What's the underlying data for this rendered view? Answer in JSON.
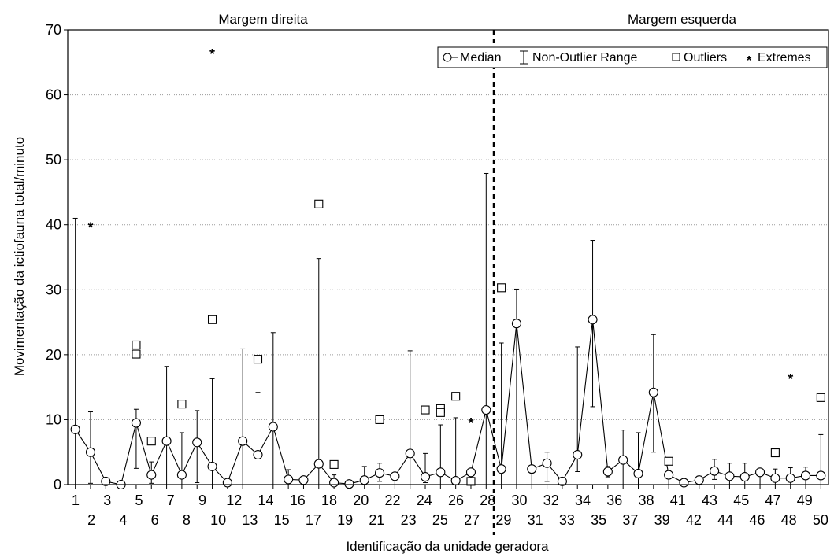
{
  "chart_data": {
    "type": "box",
    "ylabel": "Movimentação da ictiofauna total/minuto",
    "xlabel": "Identificação da unidade geradora",
    "ylim": [
      0,
      70
    ],
    "yticks": [
      0,
      10,
      20,
      30,
      40,
      50,
      60,
      70
    ],
    "grid": "horizontal dotted",
    "legend_position": "top-right",
    "legend": {
      "median": "Median",
      "range": "Non-Outlier Range",
      "outliers": "Outliers",
      "extremes": "Extremes"
    },
    "section_labels": {
      "left": "Margem direita",
      "right": "Margem esquerda"
    },
    "categories": [
      "1",
      "2",
      "3",
      "4",
      "5",
      "6",
      "7",
      "8",
      "9",
      "10",
      "11",
      "12",
      "13",
      "14",
      "15",
      "16",
      "17",
      "18",
      "19",
      "20",
      "21",
      "22",
      "23",
      "24",
      "25",
      "26",
      "27",
      "28",
      "29",
      "30",
      "31",
      "32",
      "33",
      "34",
      "35",
      "36",
      "37",
      "38",
      "39",
      "40",
      "41",
      "42",
      "43",
      "44",
      "45",
      "46",
      "47",
      "48",
      "49",
      "50"
    ],
    "tick_labels": [
      "1",
      "2",
      "3",
      "4",
      "5",
      "6",
      "7",
      "8",
      "9",
      "10",
      "12",
      "13",
      "14",
      "15",
      "16",
      "17",
      "18",
      "19",
      "20",
      "21",
      "22",
      "23",
      "24",
      "25",
      "26",
      "27",
      "28",
      "29",
      "30",
      "31",
      "32",
      "33",
      "34",
      "35",
      "36",
      "37",
      "38",
      "39",
      "41",
      "42",
      "43",
      "44",
      "45",
      "46",
      "47",
      "48",
      "49",
      "50"
    ],
    "median": [
      8.5,
      5.0,
      0.5,
      0.0,
      9.5,
      1.5,
      6.7,
      1.5,
      6.5,
      2.8,
      0.3,
      6.7,
      4.6,
      8.9,
      0.8,
      0.7,
      3.2,
      0.3,
      0.1,
      0.7,
      1.8,
      1.3,
      4.8,
      1.2,
      1.9,
      0.6,
      1.9,
      11.5,
      2.4,
      24.8,
      2.4,
      3.3,
      0.5,
      4.6,
      25.4,
      2.0,
      3.8,
      1.7,
      14.2,
      1.5,
      0.3,
      0.7,
      2.1,
      1.3,
      1.2,
      1.9,
      1.0,
      1.0,
      1.4,
      1.4
    ],
    "range_min": [
      0,
      0.2,
      0,
      0,
      2.5,
      0.2,
      0,
      0,
      0.3,
      0,
      0,
      0,
      0,
      0,
      0.2,
      0,
      0,
      0,
      0,
      0,
      0.5,
      0,
      0,
      0.3,
      0,
      0,
      0,
      0,
      0,
      0,
      0,
      0.5,
      0,
      2,
      12,
      1.2,
      0,
      0,
      5,
      0,
      0,
      0,
      0.8,
      0,
      0,
      0,
      0,
      0,
      0,
      0
    ],
    "range_max": [
      41,
      11.2,
      0.5,
      0,
      11.6,
      3.5,
      18.2,
      8,
      11.4,
      16.3,
      0.3,
      20.9,
      14.2,
      23.4,
      2.3,
      0.7,
      34.8,
      1.5,
      0.3,
      2.8,
      3.3,
      1.3,
      20.6,
      4.8,
      9.2,
      10.3,
      2.5,
      47.9,
      21.8,
      30.1,
      2.5,
      5,
      0.5,
      21.2,
      37.6,
      2.8,
      8.4,
      8,
      23.1,
      2.2,
      0.3,
      1.3,
      3.9,
      3.3,
      3.3,
      2.4,
      2.4,
      2.6,
      2.7,
      7.7
    ],
    "outliers": [
      {
        "x": "5",
        "y": 21.5
      },
      {
        "x": "5",
        "y": 20.1
      },
      {
        "x": "6",
        "y": 6.7
      },
      {
        "x": "8",
        "y": 12.4
      },
      {
        "x": "10",
        "y": 25.4
      },
      {
        "x": "13",
        "y": 19.3
      },
      {
        "x": "17",
        "y": 43.2
      },
      {
        "x": "18",
        "y": 3.1
      },
      {
        "x": "21",
        "y": 10.0
      },
      {
        "x": "24",
        "y": 11.5
      },
      {
        "x": "25",
        "y": 11.7
      },
      {
        "x": "25",
        "y": 11.1
      },
      {
        "x": "26",
        "y": 13.6
      },
      {
        "x": "27",
        "y": 0.5
      },
      {
        "x": "29",
        "y": 30.3
      },
      {
        "x": "40",
        "y": 3.6
      },
      {
        "x": "47",
        "y": 4.9
      },
      {
        "x": "50",
        "y": 13.4
      }
    ],
    "extremes": [
      {
        "x": "2",
        "y": 39.8
      },
      {
        "x": "10",
        "y": 66.5
      },
      {
        "x": "27",
        "y": 9.7
      },
      {
        "x": "48",
        "y": 16.5
      }
    ],
    "divider_between": [
      "28",
      "29"
    ]
  }
}
